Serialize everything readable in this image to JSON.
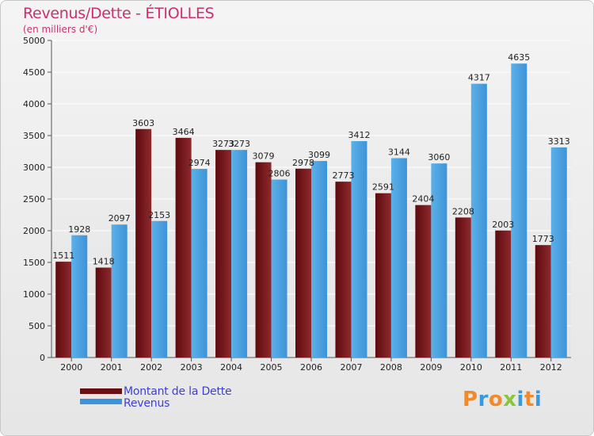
{
  "chart_data": {
    "type": "bar",
    "title": "Revenus/Dette - ÉTIOLLES",
    "subtitle": "(en milliers d'€)",
    "xlabel": "",
    "ylabel": "",
    "ylim": [
      0,
      5000
    ],
    "yticks": [
      0,
      500,
      1000,
      1500,
      2000,
      2500,
      3000,
      3500,
      4000,
      4500,
      5000
    ],
    "grid": true,
    "categories": [
      "2000",
      "2001",
      "2002",
      "2003",
      "2004",
      "2005",
      "2006",
      "2007",
      "2008",
      "2009",
      "2010",
      "2011",
      "2012"
    ],
    "series": [
      {
        "name": "Montant de la Dette",
        "color": "#7a1a1e",
        "values": [
          1511,
          1418,
          3603,
          3464,
          3273,
          3079,
          2978,
          2773,
          2591,
          2404,
          2208,
          2003,
          1773
        ]
      },
      {
        "name": "Revenus",
        "color": "#4aa3e4",
        "values": [
          1928,
          2097,
          2153,
          2974,
          3273,
          2806,
          3099,
          3412,
          3144,
          3060,
          4317,
          4635,
          3313
        ]
      }
    ],
    "legend_position": "bottom-left"
  },
  "brand": {
    "letters": [
      "P",
      "r",
      "o",
      "x",
      "i",
      "t",
      "i"
    ],
    "colors": [
      "#f08a2a",
      "#3a9ad9",
      "#f08a2a",
      "#8bc53f",
      "#3a9ad9",
      "#f08a2a",
      "#3a9ad9"
    ]
  }
}
